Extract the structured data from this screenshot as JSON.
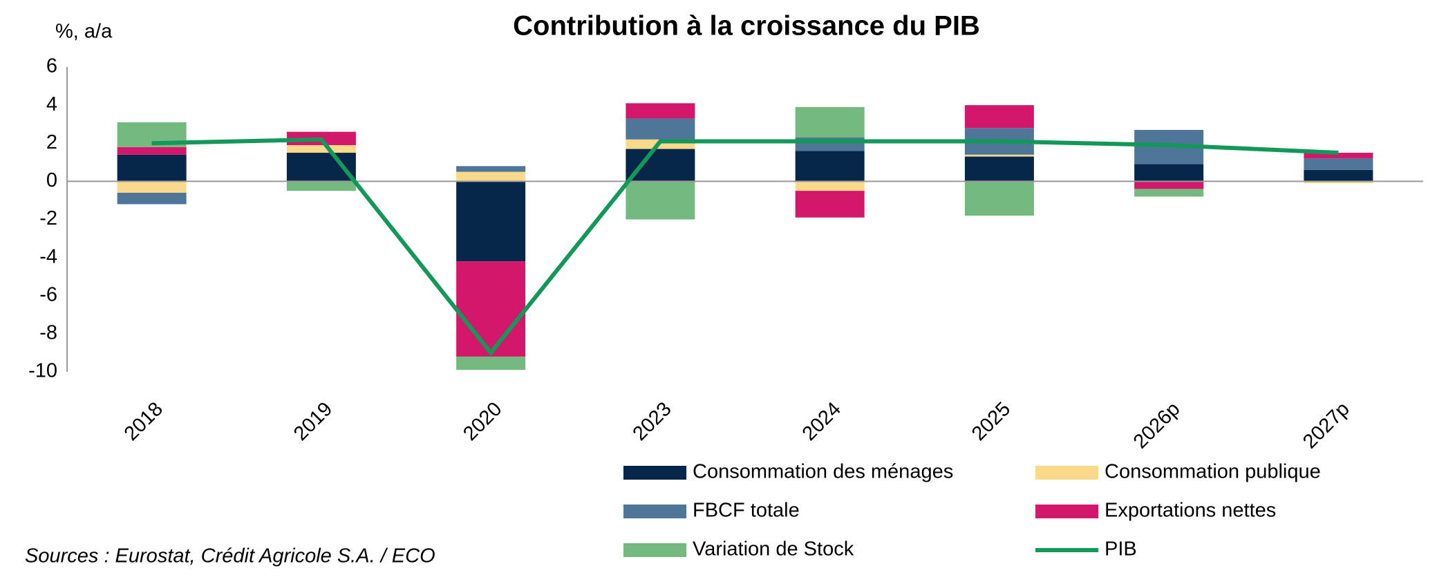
{
  "chart_data": {
    "type": "bar",
    "stacked": true,
    "title": "Contribution à la croissance du PIB",
    "y_label": "%, a/a",
    "source": "Sources : Eurostat, Crédit Agricole S.A. / ECO",
    "categories": [
      "2018",
      "2019",
      "2020",
      "2023",
      "2024",
      "2025",
      "2026p",
      "2027p"
    ],
    "series": [
      {
        "name": "Consommation des ménages",
        "color": "#06264a",
        "values": [
          1.4,
          1.5,
          -4.2,
          1.7,
          1.6,
          1.3,
          0.9,
          0.6
        ]
      },
      {
        "name": "Consommation publique",
        "color": "#fbd98a",
        "values": [
          -0.6,
          0.4,
          0.5,
          0.5,
          -0.5,
          0.1,
          0.0,
          -0.1
        ]
      },
      {
        "name": "FBCF totale",
        "color": "#4d7698",
        "values": [
          -0.6,
          0.0,
          0.3,
          1.1,
          0.7,
          1.4,
          1.8,
          0.6
        ]
      },
      {
        "name": "Exportations nettes",
        "color": "#d3176a",
        "values": [
          0.4,
          0.7,
          -5.0,
          0.8,
          -1.4,
          1.2,
          -0.4,
          0.3
        ]
      },
      {
        "name": "Variation de Stock",
        "color": "#74b97f",
        "values": [
          1.3,
          -0.5,
          -0.7,
          -2.0,
          1.6,
          -1.8,
          -0.4,
          0.0
        ]
      },
      {
        "name": "PIB",
        "type": "line",
        "color": "#13985a",
        "values": [
          2.0,
          2.2,
          -9.0,
          2.1,
          2.1,
          2.1,
          1.9,
          1.5
        ]
      }
    ],
    "ylim": [
      -10,
      6
    ],
    "yticks": [
      -10,
      -8,
      -6,
      -4,
      -2,
      0,
      2,
      4,
      6
    ],
    "grid": false
  }
}
